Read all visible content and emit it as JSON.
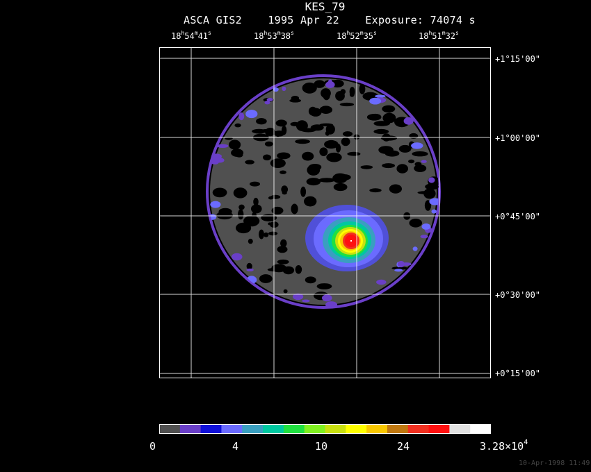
{
  "header": {
    "object": "KES_79",
    "instrument": "ASCA GIS2",
    "date": "1995 Apr 22",
    "exposure_label": "Exposure:",
    "exposure_value": "74074 s"
  },
  "ra_labels": [
    {
      "h": "18",
      "m": "54",
      "s": "41"
    },
    {
      "h": "18",
      "m": "53",
      "s": "38"
    },
    {
      "h": "18",
      "m": "52",
      "s": "35"
    },
    {
      "h": "18",
      "m": "51",
      "s": "32"
    }
  ],
  "dec_labels": [
    "+1°15'00\"",
    "+1°00'00\"",
    "+0°45'00\"",
    "+0°30'00\"",
    "+0°15'00\""
  ],
  "colorbar": {
    "labels": [
      "0",
      "4",
      "10",
      "24"
    ],
    "max_label_base": "3.28×10",
    "max_label_exp": "4",
    "colors": [
      "#505050",
      "#6a3fc8",
      "#1010d8",
      "#6b6bff",
      "#3a9fc0",
      "#00c8a0",
      "#20e040",
      "#80f020",
      "#c8e010",
      "#ffff00",
      "#f8c800",
      "#c07810",
      "#f03020",
      "#ff1010",
      "#e0e0e0",
      "#ffffff"
    ]
  },
  "image": {
    "colors": {
      "background": "#000000",
      "field": "#505050",
      "rim": "#6a3fc8",
      "halo": "#6b6bff",
      "core_low": "#3a9fc0",
      "core_mid": "#20e040",
      "core_high": "#ffff00",
      "core_peak": "#ff1010"
    }
  },
  "timestamp": "10-Apr-1998 11:49"
}
